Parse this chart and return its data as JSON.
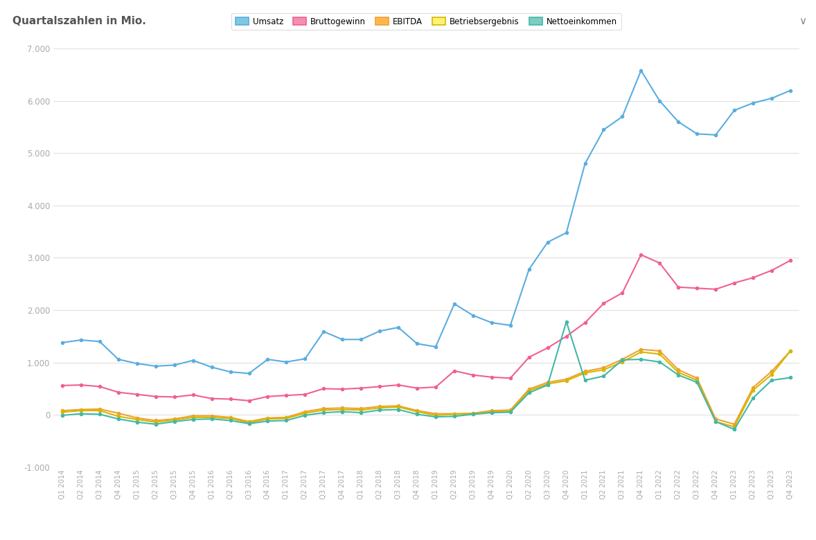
{
  "title": "Quartalszahlen in Mio.",
  "header_bg": "#eeeeee",
  "plot_bg": "#ffffff",
  "outer_bg": "#ffffff",
  "legend_labels": [
    "Umsatz",
    "Bruttogewinn",
    "EBITDA",
    "Betriebsergebnis",
    "Nettoeinkommen"
  ],
  "colors": {
    "Umsatz": "#7ec8e3",
    "Bruttogewinn": "#f48fb1",
    "EBITDA": "#ffb74d",
    "Betriebsergebnis": "#fff176",
    "Nettoeinkommen": "#80cbc4"
  },
  "line_colors": {
    "Umsatz": "#5aade0",
    "Bruttogewinn": "#f06090",
    "EBITDA": "#f0a030",
    "Betriebsergebnis": "#d4b800",
    "Nettoeinkommen": "#40b8a8"
  },
  "quarters": [
    "Q1 2014",
    "Q2 2014",
    "Q3 2014",
    "Q4 2014",
    "Q1 2015",
    "Q2 2015",
    "Q3 2015",
    "Q4 2015",
    "Q1 2016",
    "Q2 2016",
    "Q3 2016",
    "Q4 2016",
    "Q1 2017",
    "Q2 2017",
    "Q3 2017",
    "Q4 2017",
    "Q1 2018",
    "Q2 2018",
    "Q3 2018",
    "Q4 2018",
    "Q1 2019",
    "Q2 2019",
    "Q3 2019",
    "Q4 2019",
    "Q1 2020",
    "Q2 2020",
    "Q3 2020",
    "Q4 2020",
    "Q1 2021",
    "Q2 2021",
    "Q3 2021",
    "Q4 2021",
    "Q1 2022",
    "Q2 2022",
    "Q3 2022",
    "Q4 2022",
    "Q1 2023",
    "Q2 2023",
    "Q3 2023",
    "Q4 2023"
  ],
  "Umsatz": [
    1380,
    1430,
    1400,
    1060,
    980,
    930,
    950,
    1040,
    910,
    820,
    790,
    1060,
    1010,
    1070,
    1590,
    1440,
    1440,
    1600,
    1670,
    1360,
    1300,
    2120,
    1900,
    1760,
    1710,
    2780,
    3300,
    3480,
    4800,
    5450,
    5700,
    6580,
    6000,
    5600,
    5370,
    5350,
    5820,
    5960,
    6050,
    6200
  ],
  "Bruttogewinn": [
    560,
    570,
    540,
    430,
    390,
    350,
    340,
    380,
    310,
    300,
    270,
    350,
    370,
    390,
    500,
    490,
    510,
    540,
    570,
    510,
    530,
    840,
    760,
    720,
    700,
    1100,
    1280,
    1500,
    1760,
    2130,
    2330,
    3060,
    2900,
    2440,
    2420,
    2400,
    2520,
    2620,
    2760,
    2950
  ],
  "EBITDA": [
    80,
    100,
    110,
    30,
    -60,
    -110,
    -80,
    -20,
    -20,
    -50,
    -130,
    -60,
    -50,
    60,
    120,
    130,
    120,
    160,
    170,
    80,
    20,
    20,
    30,
    80,
    90,
    490,
    620,
    680,
    830,
    900,
    1060,
    1250,
    1220,
    860,
    700,
    -80,
    -180,
    520,
    830,
    1220
  ],
  "Betriebsergebnis": [
    50,
    80,
    80,
    -30,
    -90,
    -140,
    -100,
    -50,
    -50,
    -70,
    -150,
    -80,
    -70,
    30,
    90,
    100,
    90,
    130,
    150,
    60,
    -10,
    10,
    20,
    60,
    70,
    460,
    590,
    650,
    800,
    860,
    1010,
    1200,
    1160,
    810,
    660,
    -130,
    -230,
    470,
    770,
    1220
  ],
  "Nettoeinkommen": [
    -10,
    20,
    10,
    -80,
    -140,
    -180,
    -130,
    -90,
    -80,
    -110,
    -170,
    -120,
    -110,
    -10,
    40,
    60,
    40,
    90,
    100,
    10,
    -40,
    -30,
    10,
    40,
    50,
    420,
    570,
    1780,
    660,
    740,
    1050,
    1060,
    1010,
    760,
    620,
    -130,
    -280,
    320,
    660,
    710
  ],
  "ylim": [
    -1000,
    7000
  ],
  "yticks": [
    -1000,
    0,
    1000,
    2000,
    3000,
    4000,
    5000,
    6000,
    7000
  ],
  "ytick_labels": [
    "-1.000",
    "0",
    "1.000",
    "2.000",
    "3.000",
    "4.000",
    "5.000",
    "6.000",
    "7.000"
  ]
}
